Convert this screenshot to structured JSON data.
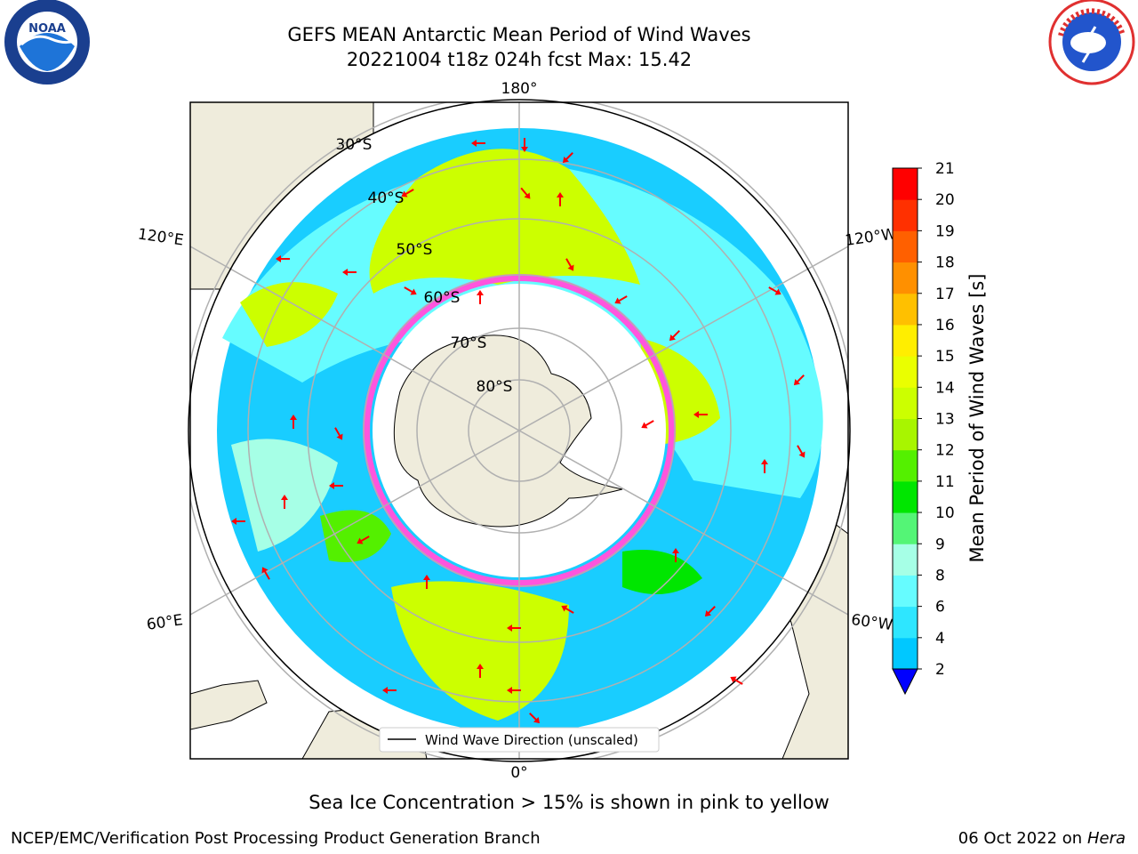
{
  "title_line1": "GEFS MEAN Antarctic Mean Period of Wind Waves",
  "title_line2": "20221004 t18z 024h fcst   Max: 15.42",
  "subtitle": "Sea Ice Concentration > 15% is shown in pink to yellow",
  "footer_left": "NCEP/EMC/Verification Post Processing Product Generation Branch",
  "footer_right_date": "06 Oct 2022 on",
  "footer_right_host": "Hera",
  "logos": {
    "left": "noaa-logo",
    "right": "nws-logo"
  },
  "legend_label": "Wind Wave Direction (unscaled)",
  "map": {
    "lon_labels": [
      "180°",
      "0°",
      "120°E",
      "120°W",
      "60°E",
      "60°W"
    ],
    "lat_labels": [
      "30°S",
      "40°S",
      "50°S",
      "60°S",
      "70°S",
      "80°S"
    ]
  },
  "colorbar": {
    "label": "Mean Period of Wind Waves [s]",
    "ticks": [
      "2",
      "4",
      "6",
      "8",
      "9",
      "10",
      "11",
      "12",
      "13",
      "14",
      "15",
      "16",
      "17",
      "18",
      "19",
      "20",
      "21"
    ],
    "colors": [
      "#0064ff",
      "#00c8ff",
      "#2ee6ff",
      "#66fcff",
      "#a6ffe6",
      "#54f576",
      "#00e600",
      "#54f000",
      "#a8f500",
      "#ccff00",
      "#eaff00",
      "#ffee00",
      "#ffc000",
      "#ff9000",
      "#ff6000",
      "#ff3000",
      "#ff0000"
    ],
    "extend_color": "#0000ff"
  },
  "colors": {
    "land": "#efecdc",
    "ice": "#ff55dd",
    "arrow": "#ff0000"
  }
}
